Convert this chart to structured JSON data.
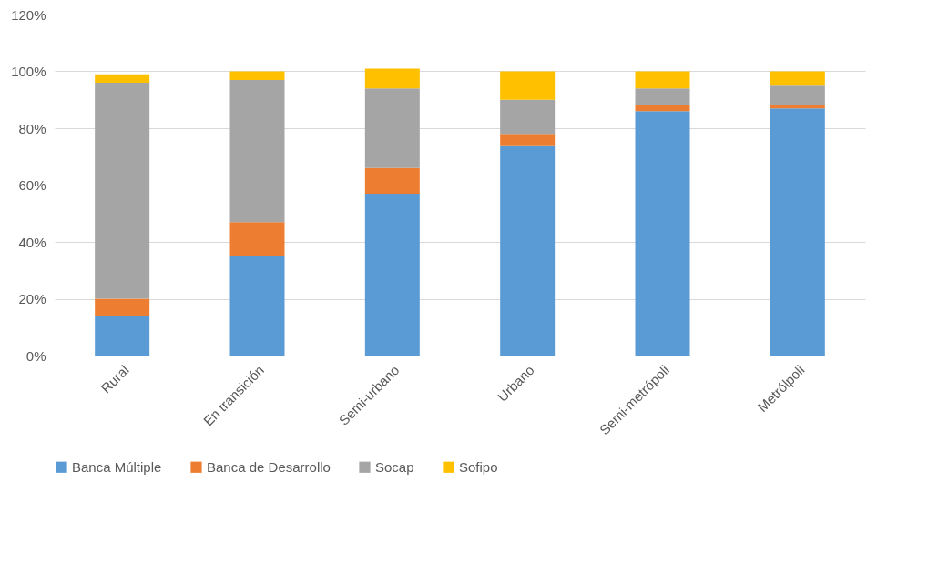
{
  "chart_data": {
    "type": "bar",
    "stacked": true,
    "categories": [
      "Rural",
      "En transición",
      "Semi-urbano",
      "Urbano",
      "Semi-metrópoli",
      "Metrólpoli"
    ],
    "series": [
      {
        "name": "Banca Múltiple",
        "color": "#5b9bd5",
        "values": [
          14,
          35,
          57,
          74,
          86,
          87
        ]
      },
      {
        "name": "Banca de Desarrollo",
        "color": "#ed7d31",
        "values": [
          6,
          12,
          9,
          4,
          2,
          1
        ]
      },
      {
        "name": "Socap",
        "color": "#a5a5a5",
        "values": [
          76,
          50,
          28,
          12,
          6,
          7
        ]
      },
      {
        "name": "Sofipo",
        "color": "#ffc000",
        "values": [
          3,
          3,
          7,
          10,
          6,
          5
        ]
      }
    ],
    "ylim": [
      0,
      120
    ],
    "yticks": [
      {
        "value": 0,
        "label": "0%"
      },
      {
        "value": 20,
        "label": "20%"
      },
      {
        "value": 40,
        "label": "40%"
      },
      {
        "value": 60,
        "label": "60%"
      },
      {
        "value": 80,
        "label": "80%"
      },
      {
        "value": 100,
        "label": "100%"
      },
      {
        "value": 120,
        "label": "120%"
      }
    ],
    "grid": "y",
    "legend": "bottom"
  }
}
